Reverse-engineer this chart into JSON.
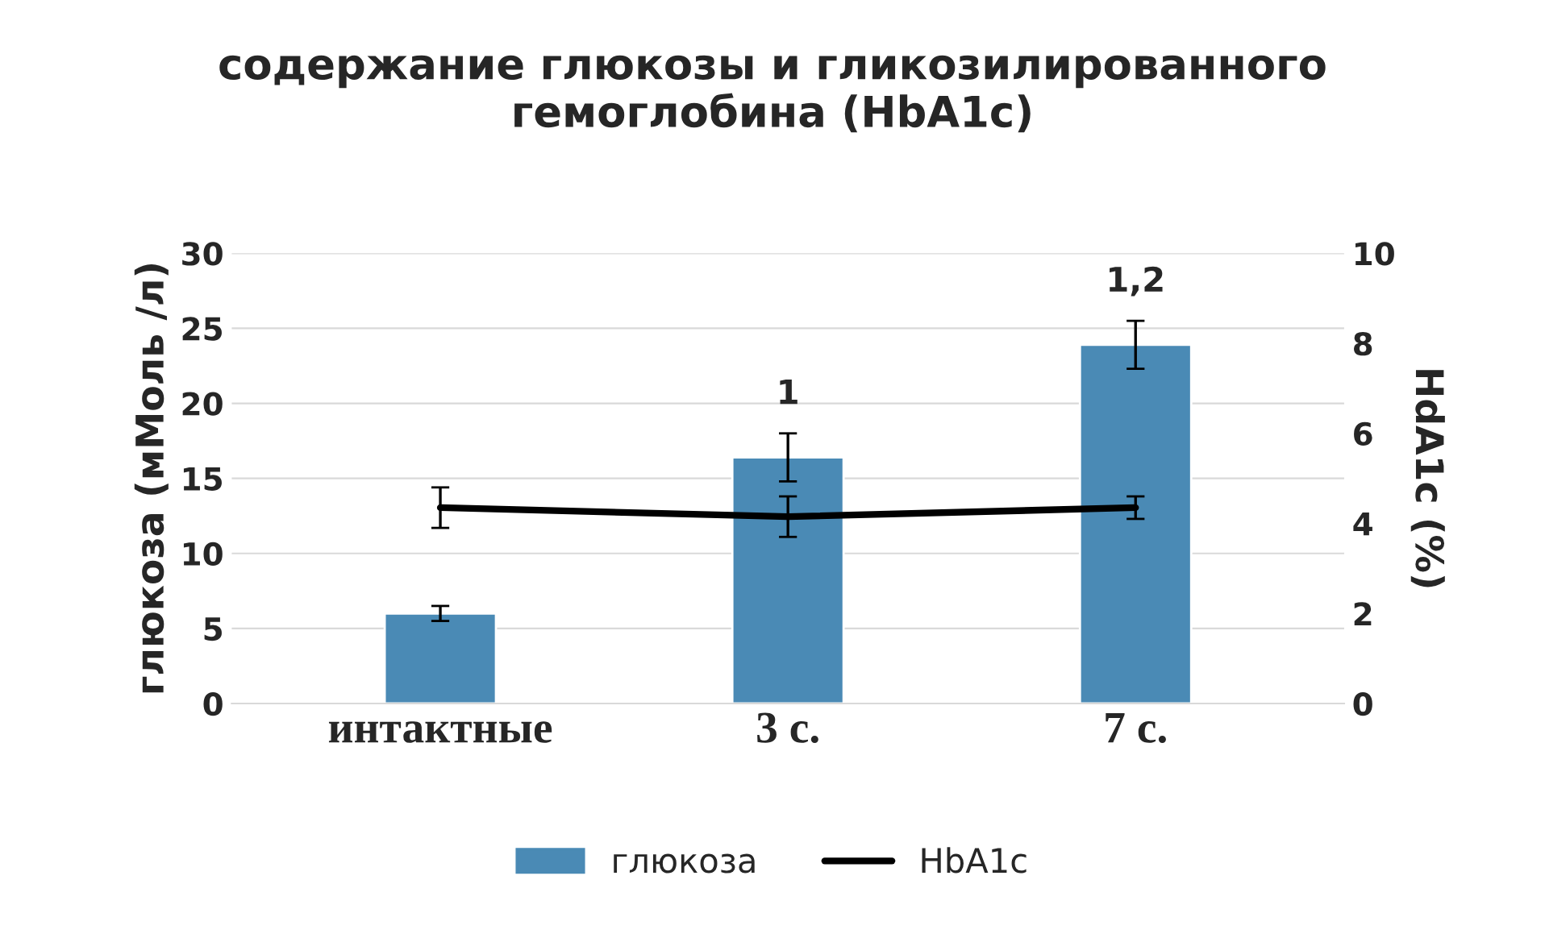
{
  "chart_data": {
    "type": "bar",
    "title": "содержание глюкозы и гликозилированного\nгемоглобина (HbA1c)",
    "categories": [
      "интактные",
      "3 с.",
      "7 с."
    ],
    "series": [
      {
        "name": "глюкоза",
        "color": "#4a8ab5",
        "values": [
          6,
          16.4,
          23.9
        ],
        "errors": [
          0.5,
          1.6,
          1.6
        ]
      },
      {
        "name": "HbA1c",
        "type": "line",
        "axis": "y2",
        "color": "#000000",
        "values": [
          4.35,
          4.15,
          4.35
        ],
        "errors": [
          0.45,
          0.45,
          0.25
        ]
      }
    ],
    "ylabel": "глюкоза (мМоль /л)",
    "y2label": "HdA1c (%)",
    "ylim": [
      0,
      30
    ],
    "yticks": [
      0,
      5,
      10,
      15,
      20,
      25,
      30
    ],
    "y2lim": [
      0,
      10
    ],
    "y2ticks": [
      0,
      2,
      4,
      6,
      8,
      10
    ],
    "annotations": [
      "1",
      "1,2"
    ],
    "grid": "y",
    "legend": "bottom",
    "marker": "none",
    "line_style": "solid"
  }
}
